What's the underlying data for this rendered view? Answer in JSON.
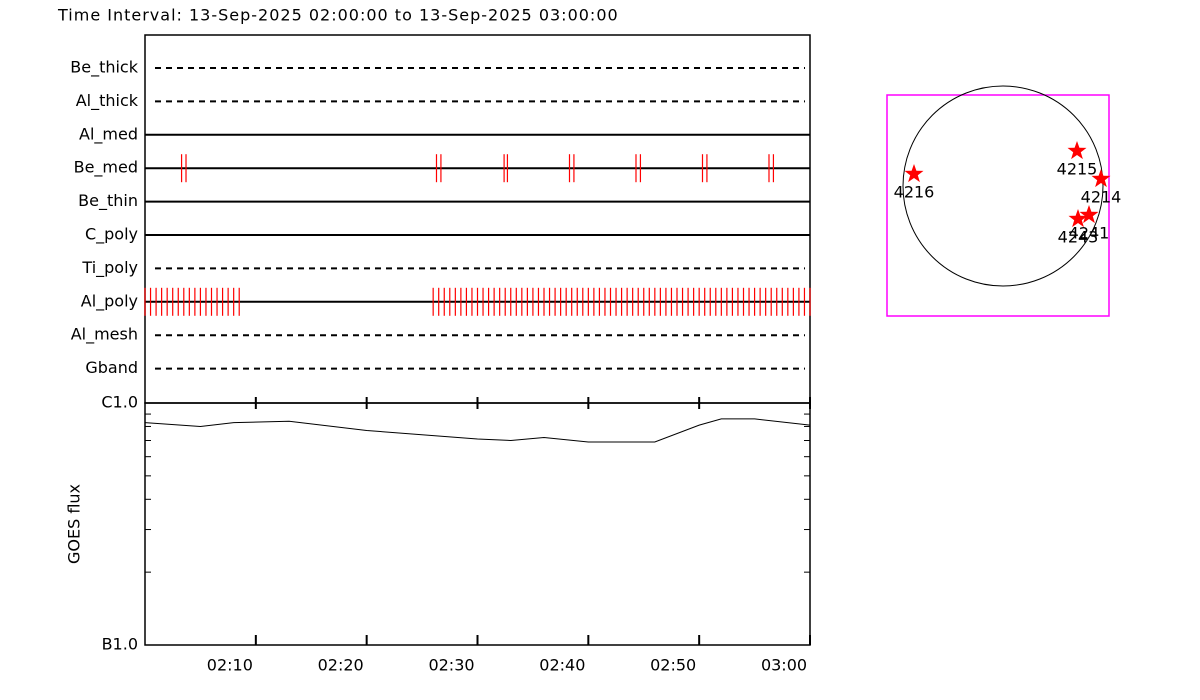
{
  "title": "Time Interval: 13-Sep-2025 02:00:00 to 13-Sep-2025 03:00:00",
  "filters": {
    "xlim": [
      0,
      60
    ],
    "rows": [
      {
        "name": "Be_thick",
        "style": "dashed",
        "times": []
      },
      {
        "name": "Al_thick",
        "style": "dashed",
        "times": []
      },
      {
        "name": "Al_med",
        "style": "solid",
        "times": []
      },
      {
        "name": "Be_med",
        "style": "solid",
        "times": [
          3.3,
          3.7,
          26.3,
          26.7,
          32.4,
          32.7,
          38.3,
          38.7,
          44.3,
          44.7,
          50.3,
          50.7,
          56.3,
          56.7
        ]
      },
      {
        "name": "Be_thin",
        "style": "solid",
        "times": []
      },
      {
        "name": "C_poly",
        "style": "solid",
        "times": []
      },
      {
        "name": "Ti_poly",
        "style": "dashed",
        "times": []
      },
      {
        "name": "Al_poly",
        "style": "solid",
        "times": [
          0,
          0.5,
          1,
          1.5,
          2,
          2.5,
          3,
          3.5,
          4,
          4.5,
          5,
          5.5,
          6,
          6.5,
          7,
          7.5,
          8,
          8.5,
          26,
          26.5,
          27,
          27.5,
          28,
          28.5,
          29,
          29.5,
          30,
          30.5,
          31,
          31.5,
          32,
          32.5,
          33,
          33.5,
          34,
          34.5,
          35,
          35.5,
          36,
          36.5,
          37,
          37.5,
          38,
          38.5,
          39,
          39.5,
          40,
          40.5,
          41,
          41.5,
          42,
          42.5,
          43,
          43.5,
          44,
          44.5,
          45,
          45.5,
          46,
          46.5,
          47,
          47.5,
          48,
          48.5,
          49,
          49.5,
          50,
          50.5,
          51,
          51.5,
          52,
          52.5,
          53,
          53.5,
          54,
          54.5,
          55,
          55.5,
          56,
          56.5,
          57,
          57.5,
          58,
          58.5,
          59,
          59.5,
          60
        ]
      },
      {
        "name": "Al_mesh",
        "style": "dashed",
        "times": []
      },
      {
        "name": "Gband",
        "style": "dashed",
        "times": []
      }
    ],
    "color": "#ff0000"
  },
  "goes": {
    "ylabel": "GOES flux",
    "log": true,
    "ylim": [
      1e-07,
      1e-06
    ],
    "yticks": [
      {
        "value": 1e-07,
        "label": "B1.0"
      },
      {
        "value": 1e-06,
        "label": "C1.0"
      }
    ],
    "yminor": [
      2e-07,
      3e-07,
      4e-07,
      5e-07,
      6e-07,
      7e-07,
      8e-07,
      9e-07
    ],
    "xlim": [
      0,
      60
    ],
    "xticks": [
      {
        "value": 10,
        "label": "02:10"
      },
      {
        "value": 20,
        "label": "02:20"
      },
      {
        "value": 30,
        "label": "02:30"
      },
      {
        "value": 40,
        "label": "02:40"
      },
      {
        "value": 50,
        "label": "02:50"
      },
      {
        "value": 60,
        "label": "03:00"
      }
    ],
    "x": [
      0,
      5,
      8,
      13,
      20,
      30,
      33,
      36,
      40,
      46,
      50,
      52,
      55,
      60
    ],
    "values": [
      8.3e-07,
      8e-07,
      8.3e-07,
      8.4e-07,
      7.7e-07,
      7.1e-07,
      7e-07,
      7.2e-07,
      6.9e-07,
      6.9e-07,
      8.1e-07,
      8.6e-07,
      8.6e-07,
      8.1e-07
    ]
  },
  "map": {
    "xlim": [
      -1.16,
      1.06
    ],
    "ylim": [
      -1.3,
      0.91
    ],
    "radius": 1,
    "box_color": "#ff00ff",
    "spot_color": "#ff0000",
    "spots": [
      {
        "label": "4216",
        "x": -0.89,
        "y": 0.12
      },
      {
        "label": "4215",
        "x": 0.74,
        "y": 0.35
      },
      {
        "label": "4214",
        "x": 0.98,
        "y": 0.07
      },
      {
        "label": "4243",
        "x": 0.75,
        "y": -0.33
      },
      {
        "label": "4241",
        "x": 0.86,
        "y": -0.29
      }
    ]
  }
}
